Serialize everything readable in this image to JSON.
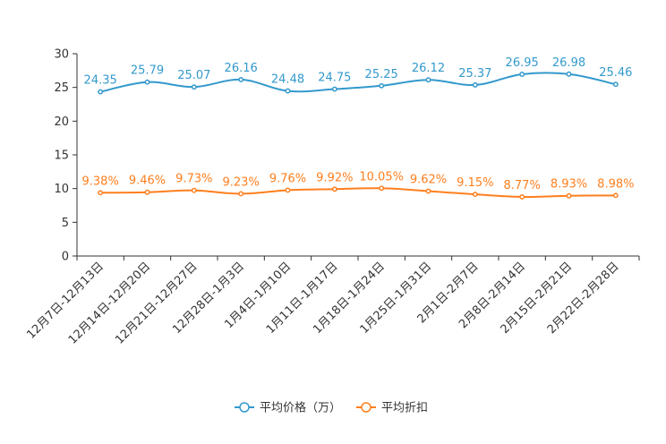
{
  "chart_data": {
    "type": "line",
    "title": "",
    "xlabel": "",
    "ylabel": "",
    "ylim": [
      0,
      30
    ],
    "yticks": [
      "0",
      "5",
      "10",
      "15",
      "20",
      "25",
      "30"
    ],
    "categories": [
      "12月7日-12月13日",
      "12月14日-12月20日",
      "12月21日-12月27日",
      "12月28日-1月3日",
      "1月4日-1月10日",
      "1月11日-1月17日",
      "1月18日-1月24日",
      "1月25日-1月31日",
      "2月1日-2月7日",
      "2月8日-2月14日",
      "2月15日-2月21日",
      "2月22日-2月28日"
    ],
    "series": [
      {
        "name": "平均价格（万）",
        "color": "#3399cc",
        "values": [
          24.35,
          25.79,
          25.07,
          26.16,
          24.48,
          24.75,
          25.25,
          26.12,
          25.37,
          26.95,
          26.98,
          25.46
        ],
        "labels": [
          "24.35",
          "25.79",
          "25.07",
          "26.16",
          "24.48",
          "24.75",
          "25.25",
          "26.12",
          "25.37",
          "26.95",
          "26.98",
          "25.46"
        ]
      },
      {
        "name": "平均折扣",
        "color": "#ff7f1e",
        "values": [
          9.38,
          9.46,
          9.73,
          9.23,
          9.76,
          9.92,
          10.05,
          9.62,
          9.15,
          8.77,
          8.93,
          8.98
        ],
        "labels": [
          "9.38%",
          "9.46%",
          "9.73%",
          "9.23%",
          "9.76%",
          "9.92%",
          "10.05%",
          "9.62%",
          "9.15%",
          "8.77%",
          "8.93%",
          "8.98%"
        ]
      }
    ],
    "legend_position": "bottom-center"
  }
}
